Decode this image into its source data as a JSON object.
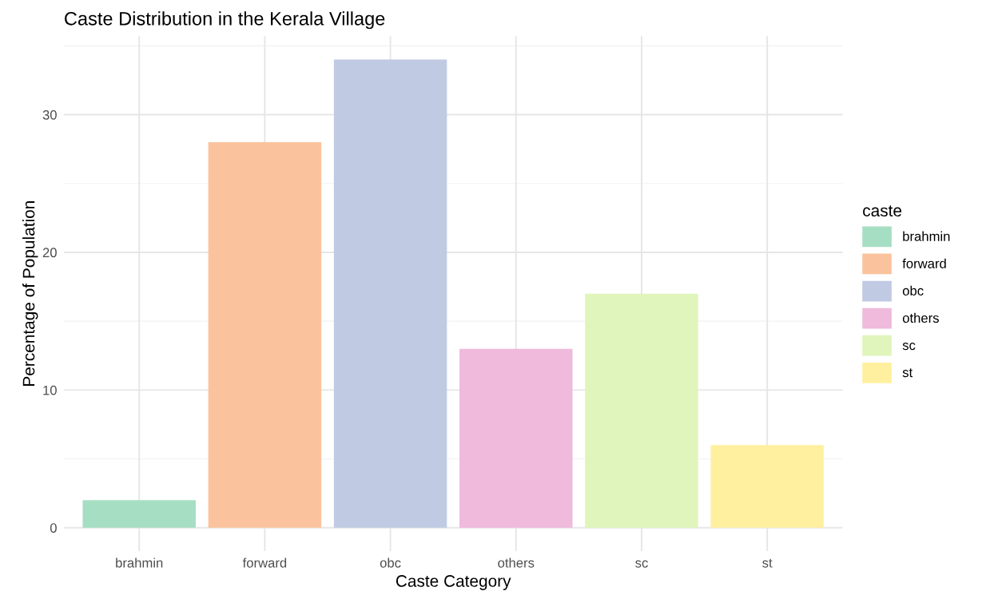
{
  "chart_data": {
    "type": "bar",
    "title": "Caste Distribution in the Kerala Village",
    "xlabel": "Caste Category",
    "ylabel": "Percentage of Population",
    "legend_title": "caste",
    "categories": [
      "brahmin",
      "forward",
      "obc",
      "others",
      "sc",
      "st"
    ],
    "series": [
      {
        "name": "brahmin",
        "color": "#a6dec3",
        "values": [
          2,
          null,
          null,
          null,
          null,
          null
        ]
      },
      {
        "name": "forward",
        "color": "#fbc39d",
        "values": [
          null,
          28,
          null,
          null,
          null,
          null
        ]
      },
      {
        "name": "obc",
        "color": "#c1cae3",
        "values": [
          null,
          null,
          34,
          null,
          null,
          null
        ]
      },
      {
        "name": "others",
        "color": "#efbadc",
        "values": [
          null,
          null,
          null,
          13,
          null,
          null
        ]
      },
      {
        "name": "sc",
        "color": "#e0f5bb",
        "values": [
          null,
          null,
          null,
          null,
          17,
          null
        ]
      },
      {
        "name": "st",
        "color": "#fff0a0",
        "values": [
          null,
          null,
          null,
          null,
          null,
          6
        ]
      }
    ],
    "ylim": [
      -1.7,
      35.7
    ],
    "yticks": [
      0,
      10,
      20,
      30
    ],
    "grid": true,
    "legend": "right"
  }
}
